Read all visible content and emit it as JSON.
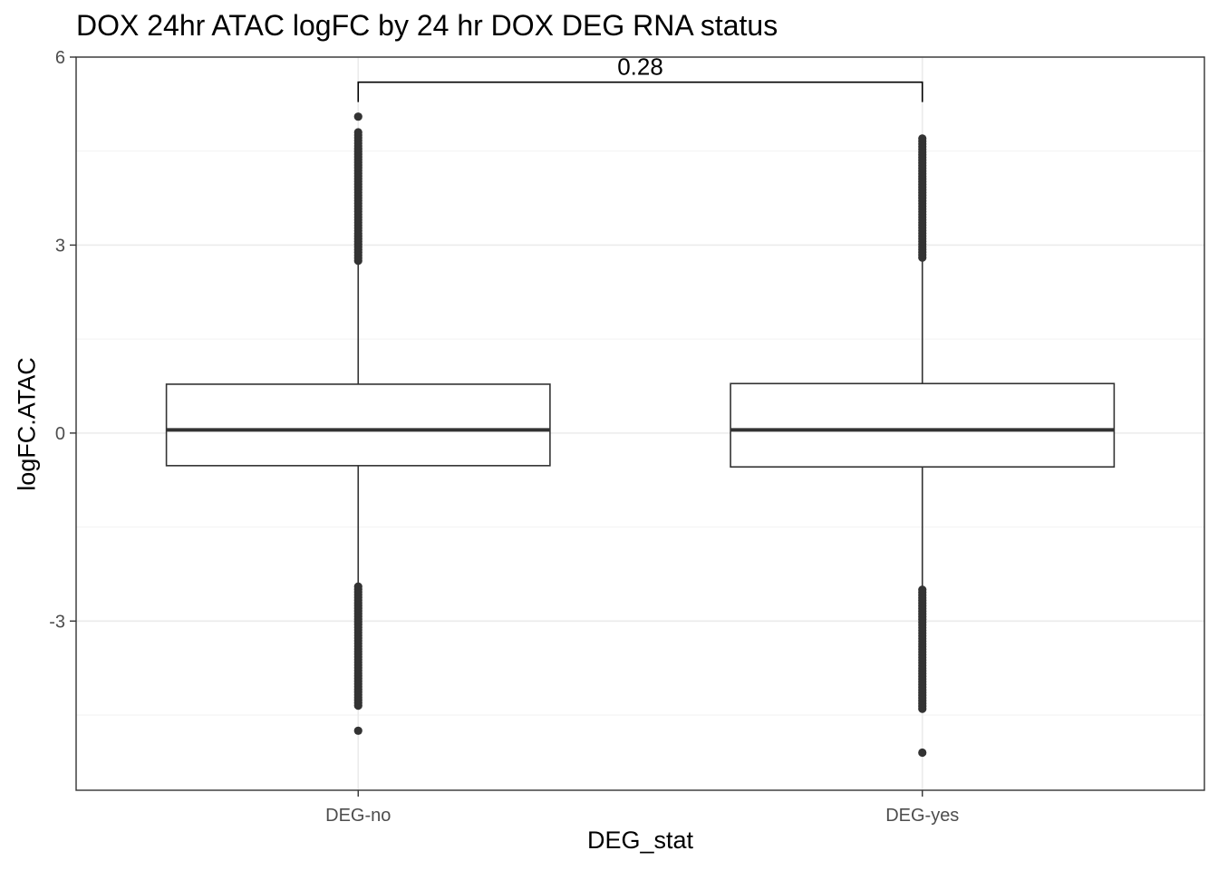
{
  "chart_data": {
    "type": "box",
    "title": "DOX 24hr ATAC logFC by 24 hr DOX DEG RNA status",
    "xlabel": "DEG_stat",
    "ylabel": "logFC.ATAC",
    "ylim": [
      -5.7,
      6.0
    ],
    "y_ticks": [
      -3,
      0,
      3,
      6
    ],
    "y_tick_labels": [
      "-3",
      "0",
      "3",
      "6"
    ],
    "grid": true,
    "categories": [
      "DEG-no",
      "DEG-yes"
    ],
    "boxes": [
      {
        "category": "DEG-no",
        "lower_whisker": -2.45,
        "q1": -0.52,
        "median": 0.05,
        "q3": 0.78,
        "upper_whisker": 2.75,
        "outliers_upper_range": [
          2.75,
          4.8
        ],
        "outliers_upper_extra": [
          5.05
        ],
        "outliers_lower_range": [
          -4.35,
          -2.45
        ],
        "outliers_lower_extra": [
          -4.75
        ]
      },
      {
        "category": "DEG-yes",
        "lower_whisker": -2.5,
        "q1": -0.54,
        "median": 0.05,
        "q3": 0.79,
        "upper_whisker": 2.8,
        "outliers_upper_range": [
          2.8,
          4.7
        ],
        "outliers_upper_extra": [],
        "outliers_lower_range": [
          -4.4,
          -2.5
        ],
        "outliers_lower_extra": [
          -5.1
        ]
      }
    ],
    "annotations": [
      {
        "type": "bracket",
        "from": "DEG-no",
        "to": "DEG-yes",
        "y": 5.6,
        "label": "0.28"
      }
    ]
  }
}
